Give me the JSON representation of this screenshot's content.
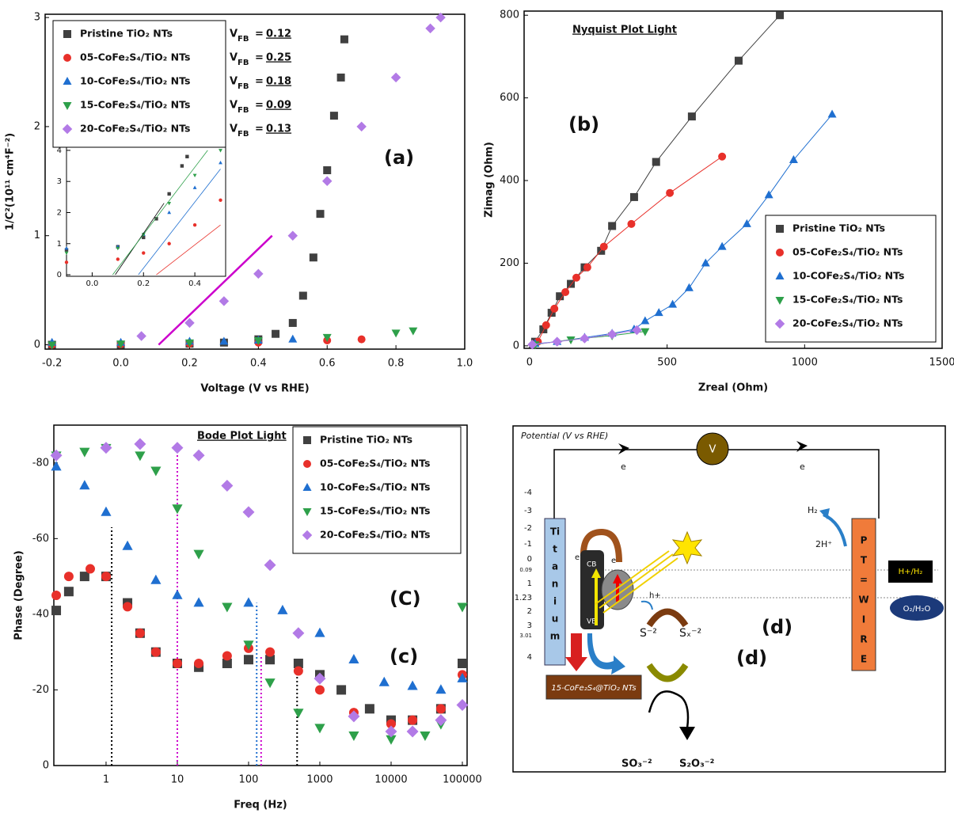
{
  "chart_data": [
    {
      "type": "scatter",
      "panel_labels": [
        "(a)"
      ],
      "x_label": "Voltage (V vs RHE)",
      "y_label": "1/C²(10¹¹ cm⁴F⁻²)",
      "xlim": [
        -0.22,
        1.0
      ],
      "ylim": [
        -0.04,
        3.03
      ],
      "xticks": [
        -0.2,
        {
          "value": 0,
          "label": "0.0"
        },
        0.2,
        0.4,
        0.6,
        0.8,
        {
          "value": 1,
          "label": "1.0"
        }
      ],
      "yticks": [
        0,
        1,
        2,
        3
      ],
      "legend": "upper left",
      "series": [
        {
          "name": "Pristine TiO₂ NTs",
          "color": "#404040",
          "marker": "square",
          "x": [
            -0.2,
            0.0,
            0.2,
            0.3,
            0.4,
            0.45,
            0.5,
            0.53,
            0.56,
            0.58,
            0.6,
            0.62,
            0.64,
            0.65
          ],
          "values": [
            0,
            0,
            0.01,
            0.02,
            0.05,
            0.1,
            0.2,
            0.45,
            0.8,
            1.2,
            1.6,
            2.1,
            2.45,
            2.8
          ]
        },
        {
          "name": "05-CoFe₂S₄/TiO₂ NTs",
          "color": "#e8302a",
          "marker": "circle",
          "x": [
            -0.2,
            0.0,
            0.2,
            0.4,
            0.6,
            0.7
          ],
          "values": [
            0,
            0.005,
            0.01,
            0.02,
            0.04,
            0.05
          ]
        },
        {
          "name": "10-CoFe₂S₄/TiO₂ NTs",
          "color": "#1f6fd0",
          "marker": "triangle-up",
          "x": [
            -0.2,
            0.0,
            0.2,
            0.3,
            0.4,
            0.5
          ],
          "values": [
            0.02,
            0.02,
            0.03,
            0.03,
            0.04,
            0.05
          ]
        },
        {
          "name": "15-CoFe₂S₄/TiO₂ NTs",
          "color": "#2ea04a",
          "marker": "triangle-down",
          "x": [
            -0.2,
            0.0,
            0.2,
            0.4,
            0.6,
            0.8,
            0.85
          ],
          "values": [
            0,
            0.01,
            0.02,
            0.04,
            0.07,
            0.11,
            0.13
          ]
        },
        {
          "name": "20-CoFe₂S₄/TiO₂ NTs",
          "color": "#b27ae6",
          "marker": "diamond",
          "x": [
            0.06,
            0.2,
            0.3,
            0.4,
            0.5,
            0.6,
            0.7,
            0.8,
            0.9,
            0.93
          ],
          "values": [
            0.08,
            0.2,
            0.4,
            0.65,
            1.0,
            1.5,
            2.0,
            2.45,
            2.9,
            3.0
          ]
        }
      ],
      "fit_lines": [
        {
          "color": "#cc00cc",
          "x": [
            0.11,
            0.44
          ],
          "values": [
            0,
            1.0
          ]
        }
      ],
      "vfb": {
        "symbol": "V",
        "subscript": "FB",
        "equals": "=",
        "values": [
          0.12,
          0.25,
          0.18,
          0.09,
          0.13
        ]
      }
    },
    {
      "type": "scatter",
      "xlim": [
        -0.1,
        0.52
      ],
      "ylim": [
        -0.05,
        4.1
      ],
      "xticks": [
        {
          "value": 0,
          "label": "0.0"
        },
        0.2,
        0.4
      ],
      "yticks": [
        0,
        1,
        2,
        3,
        4
      ],
      "series": [
        {
          "color": "#404040",
          "marker": "square",
          "x": [
            -0.1,
            0.1,
            0.2,
            0.25,
            0.3,
            0.35,
            0.37
          ],
          "values": [
            0.8,
            0.9,
            1.2,
            1.8,
            2.6,
            3.5,
            3.8
          ]
        },
        {
          "color": "#e8302a",
          "marker": "circle",
          "x": [
            -0.1,
            0.1,
            0.2,
            0.3,
            0.4,
            0.5
          ],
          "values": [
            0.4,
            0.5,
            0.7,
            1.0,
            1.6,
            2.4
          ]
        },
        {
          "color": "#1f6fd0",
          "marker": "triangle-up",
          "x": [
            -0.1,
            0.1,
            0.2,
            0.3,
            0.4,
            0.5
          ],
          "values": [
            0.85,
            0.9,
            1.3,
            2.0,
            2.8,
            3.6
          ]
        },
        {
          "color": "#2ea04a",
          "marker": "triangle-down",
          "x": [
            -0.1,
            0.1,
            0.2,
            0.3,
            0.4,
            0.5
          ],
          "values": [
            0.7,
            0.85,
            1.3,
            2.3,
            3.2,
            4.0
          ]
        }
      ],
      "fit_lines": [
        {
          "color": "#000000",
          "x": [
            0.09,
            0.28
          ],
          "values": [
            0,
            2.3
          ]
        },
        {
          "color": "#2ea04a",
          "x": [
            0.08,
            0.45
          ],
          "values": [
            0,
            4.0
          ]
        },
        {
          "color": "#1f6fd0",
          "x": [
            0.18,
            0.5
          ],
          "values": [
            0,
            3.4
          ]
        },
        {
          "color": "#e8302a",
          "x": [
            0.25,
            0.5
          ],
          "values": [
            0,
            1.6
          ]
        }
      ]
    },
    {
      "type": "line",
      "title": "Nyquist Plot Light",
      "panel_labels": [
        "(b)"
      ],
      "x_label": "Zreal (Ohm)",
      "y_label": "Zimag (Ohm)",
      "xlim": [
        -20,
        1500
      ],
      "ylim": [
        -6,
        810
      ],
      "xticks": [
        0,
        500,
        1000,
        1500
      ],
      "yticks": [
        0,
        200,
        400,
        600,
        800
      ],
      "legend": "lower right",
      "series": [
        {
          "name": "Pristine TiO₂ NTs",
          "color": "#404040",
          "marker": "square",
          "x": [
            20,
            50,
            80,
            110,
            150,
            200,
            260,
            300,
            380,
            460,
            590,
            760,
            910
          ],
          "values": [
            10,
            40,
            80,
            120,
            150,
            190,
            230,
            290,
            360,
            445,
            555,
            690,
            800
          ]
        },
        {
          "name": "05-CoFe₂S₄/TiO₂ NTs",
          "color": "#e8302a",
          "marker": "circle",
          "x": [
            30,
            60,
            90,
            130,
            170,
            210,
            270,
            370,
            510,
            700
          ],
          "values": [
            10,
            50,
            90,
            130,
            165,
            190,
            240,
            295,
            370,
            458
          ]
        },
        {
          "name": "10-COFe₂S₄/TiO₂ NTs",
          "color": "#1f6fd0",
          "marker": "triangle-up",
          "x": [
            20,
            100,
            200,
            300,
            380,
            420,
            470,
            520,
            580,
            640,
            700,
            790,
            870,
            960,
            1100
          ],
          "values": [
            5,
            10,
            20,
            30,
            40,
            60,
            80,
            100,
            140,
            200,
            240,
            295,
            365,
            450,
            560
          ]
        },
        {
          "name": "15-CoFe₂S₄/TiO₂ NTs",
          "color": "#2ea04a",
          "marker": "triangle-down",
          "x": [
            20,
            150,
            300,
            420
          ],
          "values": [
            3,
            15,
            25,
            35
          ]
        },
        {
          "name": "20-CoFe₂S₄/TiO₂ NTs",
          "color": "#b27ae6",
          "marker": "diamond",
          "x": [
            10,
            100,
            200,
            300,
            390
          ],
          "values": [
            3,
            10,
            18,
            28,
            38
          ]
        }
      ]
    },
    {
      "type": "scatter",
      "title": "Bode Plot Light",
      "panel_labels": [
        "(C)",
        "(c)"
      ],
      "x_label": "Freq (Hz)",
      "y_label": "Phase (Degree)",
      "xscale": "log",
      "xlim": [
        0.185,
        116600
      ],
      "ylim": [
        0,
        -90
      ],
      "xticks": [
        1,
        10,
        100,
        1000,
        10000,
        100000
      ],
      "yticks": [
        0,
        -20,
        -40,
        -60,
        -80
      ],
      "legend": "upper right",
      "series": [
        {
          "name": "Pristine TiO₂ NTs",
          "color": "#404040",
          "marker": "square",
          "x": [
            0.2,
            0.3,
            0.5,
            1,
            2,
            3,
            5,
            10,
            20,
            50,
            100,
            200,
            500,
            1000,
            2000,
            5000,
            10000,
            20000,
            50000,
            100000
          ],
          "values": [
            -41,
            -46,
            -50,
            -50,
            -43,
            -35,
            -30,
            -27,
            -26,
            -27,
            -28,
            -28,
            -27,
            -24,
            -20,
            -15,
            -12,
            -12,
            -15,
            -27
          ]
        },
        {
          "name": "05-CoFe₂S₄/TiO₂ NTs",
          "color": "#e8302a",
          "marker": "circle",
          "x": [
            0.2,
            0.3,
            0.6,
            1,
            2,
            3,
            5,
            10,
            20,
            50,
            100,
            200,
            500,
            1000,
            3000,
            10000,
            20000,
            50000,
            100000
          ],
          "values": [
            -45,
            -50,
            -52,
            -50,
            -42,
            -35,
            -30,
            -27,
            -27,
            -29,
            -31,
            -30,
            -25,
            -20,
            -14,
            -11,
            -12,
            -15,
            -24
          ]
        },
        {
          "name": "10-CoFe₂S₄/TiO₂ NTs",
          "color": "#1f6fd0",
          "marker": "triangle-up",
          "x": [
            0.2,
            0.5,
            1,
            2,
            5,
            10,
            20,
            100,
            300,
            1000,
            3000,
            8000,
            20000,
            50000,
            100000
          ],
          "values": [
            -79,
            -74,
            -67,
            -58,
            -49,
            -45,
            -43,
            -43,
            -41,
            -35,
            -28,
            -22,
            -21,
            -20,
            -23
          ]
        },
        {
          "name": "15-CoFe₂S₄/TiO₂ NTs",
          "color": "#2ea04a",
          "marker": "triangle-down",
          "x": [
            0.2,
            0.5,
            1,
            3,
            5,
            10,
            20,
            50,
            100,
            200,
            500,
            1000,
            3000,
            10000,
            30000,
            50000,
            100000
          ],
          "values": [
            -82,
            -83,
            -84,
            -82,
            -78,
            -68,
            -56,
            -42,
            -32,
            -22,
            -14,
            -10,
            -8,
            -7,
            -8,
            -11,
            -42
          ]
        },
        {
          "name": "20-CoFe₂S₄/TiO₂ NTs",
          "color": "#b27ae6",
          "marker": "diamond",
          "x": [
            0.2,
            1,
            3,
            10,
            20,
            50,
            100,
            200,
            500,
            1000,
            3000,
            10000,
            20000,
            50000,
            100000
          ],
          "values": [
            -82,
            -84,
            -85,
            -84,
            -82,
            -74,
            -67,
            -53,
            -35,
            -23,
            -13,
            -9,
            -9,
            -12,
            -16
          ]
        }
      ],
      "reference_lines": [
        {
          "x": 1.2,
          "to": -63,
          "color": "#000000"
        },
        {
          "x": 10,
          "to": -83,
          "color": "#cc00cc"
        },
        {
          "x": 130,
          "to": -43,
          "color": "#1f6fd0"
        },
        {
          "x": 150,
          "to": -29,
          "color": "#cc00cc"
        },
        {
          "x": 480,
          "to": -27,
          "color": "#000000"
        }
      ]
    }
  ],
  "diagram": {
    "axis_title": "Potential (V vs RHE)",
    "voltmeter": "V",
    "electrons": [
      "e",
      "e"
    ],
    "scale": [
      "-4",
      "-3",
      "-2",
      "-1",
      "0",
      "0.09",
      "1",
      "1.23",
      "2",
      "3",
      "3.01",
      "4"
    ],
    "titanium": [
      "Ti",
      "t",
      "a",
      "n",
      "i",
      "u",
      "m"
    ],
    "bands": [
      "CB",
      "VB"
    ],
    "excited": [
      "e",
      "e"
    ],
    "hole": "h+",
    "h2": "H₂",
    "protons": "2H⁺",
    "pt_wire": [
      "P",
      "T",
      "=",
      "W",
      "I",
      "R",
      "E"
    ],
    "couples": [
      "H+/H₂",
      "O₂/H₂O"
    ],
    "sulfide": "S⁻²",
    "polysulfide": "Sₓ⁻²",
    "sulfite": "SO₃⁻²",
    "thiosulfate": "S₂O₃⁻²",
    "photoanode": "15-CoFe₂S₄@TiO₂ NTs",
    "panel_labels": [
      "(d)",
      "(d)"
    ]
  }
}
